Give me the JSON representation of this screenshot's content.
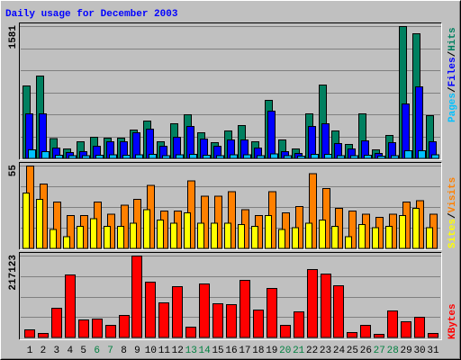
{
  "title": "Daily usage for December 2003",
  "legend_separator": "/",
  "chart_data": [
    {
      "type": "bar",
      "series": [
        {
          "name": "Hits",
          "color": "#008060",
          "values": [
            870,
            990,
            240,
            120,
            205,
            260,
            250,
            250,
            345,
            450,
            205,
            420,
            525,
            310,
            195,
            335,
            400,
            205,
            700,
            225,
            120,
            540,
            880,
            335,
            170,
            540,
            110,
            280,
            1581,
            1495,
            515
          ]
        },
        {
          "name": "Files",
          "color": "#0000ff",
          "values": [
            540,
            540,
            130,
            75,
            85,
            150,
            205,
            205,
            310,
            355,
            150,
            260,
            385,
            235,
            150,
            225,
            225,
            130,
            570,
            85,
            65,
            385,
            420,
            185,
            120,
            215,
            65,
            195,
            655,
            860,
            205
          ]
        },
        {
          "name": "Pages",
          "color": "#00c0ff",
          "values": [
            110,
            85,
            45,
            35,
            40,
            45,
            50,
            45,
            50,
            55,
            40,
            50,
            55,
            45,
            40,
            50,
            50,
            40,
            60,
            35,
            30,
            55,
            55,
            40,
            35,
            45,
            30,
            40,
            95,
            95,
            50
          ]
        }
      ],
      "ylim": [
        0,
        1581
      ],
      "yticks": [
        1581
      ]
    },
    {
      "type": "bar",
      "series": [
        {
          "name": "Visits",
          "color": "#ff8000",
          "values": [
            55,
            43,
            31,
            22,
            22,
            31,
            23,
            29,
            33,
            42,
            25,
            25,
            45,
            35,
            35,
            38,
            26,
            22,
            38,
            24,
            28,
            50,
            40,
            27,
            25,
            23,
            21,
            23,
            31,
            32,
            23
          ]
        },
        {
          "name": "Sites",
          "color": "#ffff00",
          "values": [
            37,
            33,
            13,
            8,
            15,
            20,
            15,
            15,
            17,
            26,
            19,
            17,
            24,
            17,
            17,
            17,
            16,
            15,
            22,
            13,
            14,
            17,
            19,
            15,
            8,
            16,
            14,
            15,
            22,
            27,
            14
          ]
        }
      ],
      "ylim": [
        0,
        55
      ],
      "yticks": [
        55
      ]
    },
    {
      "type": "bar",
      "series": [
        {
          "name": "KBytes",
          "color": "#ff0000",
          "values": [
            21500,
            12000,
            78700,
            167000,
            47700,
            50100,
            33400,
            59700,
            217123,
            148000,
            93000,
            136000,
            28600,
            143000,
            90700,
            88300,
            152700,
            74000,
            131000,
            33400,
            69200,
            181000,
            169000,
            138000,
            14300,
            33400,
            9500,
            71600,
            43000,
            54900,
            12000
          ]
        }
      ],
      "ylim": [
        0,
        217123
      ],
      "yticks": [
        217123
      ],
      "categories": [
        "1",
        "2",
        "3",
        "4",
        "5",
        "6",
        "7",
        "8",
        "9",
        "10",
        "11",
        "12",
        "13",
        "14",
        "15",
        "16",
        "17",
        "18",
        "19",
        "20",
        "21",
        "22",
        "23",
        "24",
        "25",
        "26",
        "27",
        "28",
        "29",
        "30",
        "31"
      ],
      "category_colors": [
        "#000000",
        "#000000",
        "#000000",
        "#000000",
        "#000000",
        "#008040",
        "#008040",
        "#000000",
        "#000000",
        "#000000",
        "#000000",
        "#000000",
        "#008040",
        "#008040",
        "#000000",
        "#000000",
        "#000000",
        "#000000",
        "#000000",
        "#008040",
        "#008040",
        "#000000",
        "#000000",
        "#000000",
        "#000000",
        "#000000",
        "#008040",
        "#008040",
        "#000000",
        "#000000",
        "#000000"
      ]
    }
  ]
}
